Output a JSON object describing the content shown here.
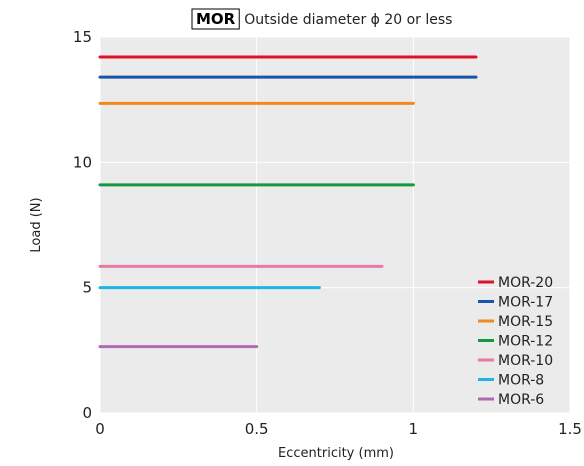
{
  "chart_data": {
    "type": "line",
    "title_badge": "MOR",
    "title": "Outside diameter ϕ 20 or less",
    "xlabel": "Eccentricity (mm)",
    "ylabel": "Load (N)",
    "xlim": [
      0,
      1.5
    ],
    "ylim": [
      0,
      15
    ],
    "xticks": [
      "0",
      "0.5",
      "1",
      "1.5"
    ],
    "yticks": [
      "0",
      "5",
      "10",
      "15"
    ],
    "grid": true,
    "legend_position": "bottom-right",
    "background_color": "#ebebeb",
    "series": [
      {
        "name": "MOR-20",
        "color": "#e0102a",
        "x": [
          0,
          1.2
        ],
        "y": [
          14.2,
          14.2
        ]
      },
      {
        "name": "MOR-17",
        "color": "#1457a8",
        "x": [
          0,
          1.2
        ],
        "y": [
          13.4,
          13.4
        ]
      },
      {
        "name": "MOR-15",
        "color": "#f08a1c",
        "x": [
          0,
          1.0
        ],
        "y": [
          12.35,
          12.35
        ]
      },
      {
        "name": "MOR-12",
        "color": "#149a3e",
        "x": [
          0,
          1.0
        ],
        "y": [
          9.1,
          9.1
        ]
      },
      {
        "name": "MOR-10",
        "color": "#e87aa7",
        "x": [
          0,
          0.9
        ],
        "y": [
          5.85,
          5.85
        ]
      },
      {
        "name": "MOR-8",
        "color": "#1fb3e6",
        "x": [
          0,
          0.7
        ],
        "y": [
          5.0,
          5.0
        ]
      },
      {
        "name": "MOR-6",
        "color": "#b06ab3",
        "x": [
          0,
          0.5
        ],
        "y": [
          2.65,
          2.65
        ]
      }
    ]
  }
}
